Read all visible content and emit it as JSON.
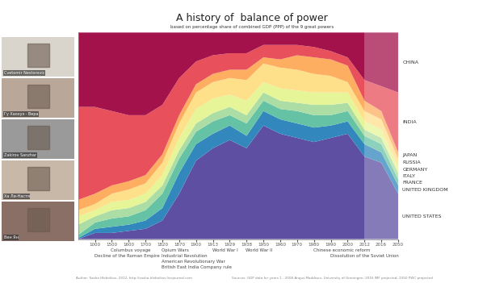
{
  "chart_data": {
    "type": "area",
    "stacked": true,
    "title": "A history of  balance of power",
    "subtitle": "based on percentage share of combined GDP (PPP) of the 9 great powers",
    "categories": [
      null,
      "1000",
      "1500",
      "1600",
      "1700",
      "1820",
      "1870",
      "1900",
      "1913",
      "1929",
      "1938",
      "1950",
      "1960",
      "1970",
      "1980",
      "1990",
      "2000",
      "2012",
      "2016",
      "2050"
    ],
    "series": [
      {
        "name": "UNITED STATES",
        "color": "#5e4fa2",
        "values": [
          0,
          3,
          3,
          4,
          5,
          9,
          22,
          38,
          44,
          48,
          44,
          55,
          51,
          49,
          47,
          49,
          51,
          40,
          37,
          22
        ]
      },
      {
        "name": "UNITED KINGDOM",
        "color": "#3288bd",
        "values": [
          0.5,
          2,
          3,
          3,
          4,
          6,
          10,
          8,
          7,
          7,
          6,
          7,
          7,
          7,
          7,
          6,
          6,
          6,
          5,
          4
        ]
      },
      {
        "name": "FRANCE",
        "color": "#66c2a5",
        "values": [
          1.5,
          3,
          4,
          4,
          5,
          7,
          7,
          6,
          6,
          5,
          6,
          5,
          5,
          6,
          6,
          5,
          5,
          4,
          4,
          3
        ]
      },
      {
        "name": "ITALY",
        "color": "#abdda4",
        "values": [
          5,
          3,
          4,
          4,
          4,
          4,
          4,
          4,
          4,
          4,
          4,
          4,
          4,
          4,
          5,
          5,
          4,
          3,
          3,
          3
        ]
      },
      {
        "name": "GERMANY",
        "color": "#e6f598",
        "values": [
          4,
          3,
          4,
          4,
          4,
          5,
          6,
          7,
          7,
          6,
          7,
          5,
          6,
          6,
          6,
          6,
          5,
          4,
          4,
          3
        ]
      },
      {
        "name": "RUSSIA",
        "color": "#fee08b",
        "values": [
          3,
          3,
          4,
          5,
          5,
          6,
          7,
          8,
          8,
          8,
          10,
          9,
          10,
          10,
          9,
          8,
          5,
          5,
          5,
          4
        ]
      },
      {
        "name": "JAPAN",
        "color": "#fdae61",
        "values": [
          5,
          5,
          4,
          4,
          4,
          4,
          4,
          4,
          4,
          4,
          5,
          3,
          4,
          7,
          8,
          8,
          8,
          5,
          4,
          3
        ]
      },
      {
        "name": "INDIA",
        "color": "#e8505b",
        "values": [
          45,
          42,
          36,
          32,
          29,
          24,
          18,
          11,
          9,
          8,
          8,
          6,
          7,
          5,
          5,
          4,
          4,
          10,
          12,
          29
        ]
      },
      {
        "name": "CHINA",
        "color": "#a3124a",
        "values": [
          36,
          36,
          38,
          40,
          40,
          35,
          22,
          14,
          11,
          10,
          10,
          6,
          6,
          6,
          7,
          9,
          12,
          23,
          26,
          29
        ]
      }
    ],
    "ylim": [
      0,
      100
    ],
    "tick_labels": "x",
    "annotations": [
      {
        "text": "Columbus voyage",
        "at": "1500"
      },
      {
        "text": "Decline of the Roman Empire",
        "at": "1000"
      },
      {
        "text": "Opium Wars",
        "at": "1820"
      },
      {
        "text": "Industrial Revolution",
        "at": "1820"
      },
      {
        "text": "American Revolutionary War",
        "at": "1820"
      },
      {
        "text": "British East India Company rule",
        "at": "1820"
      },
      {
        "text": "World War I",
        "at": "1913"
      },
      {
        "text": "World War II",
        "at": "1938"
      },
      {
        "text": "Chinese economic reform",
        "at": "1980"
      },
      {
        "text": "Dissolution of the Soviet Union",
        "at": "1990"
      }
    ],
    "author": "Author: Sasha Hlebnikov, 2012, http://sasha-hlebnikov.livejournal.com",
    "source": "Sources: GDP data for years 1 - 2008 Angus Maddison, University of Groningen; 2016 IMF projected; 2050 PWC projected"
  },
  "participants": [
    "Cvetomir Nestorovic",
    "Гу Хаохуэ - Вера",
    "Zakirov Sanzhar",
    "Ха Ли-Настя",
    "Вен Ян"
  ]
}
